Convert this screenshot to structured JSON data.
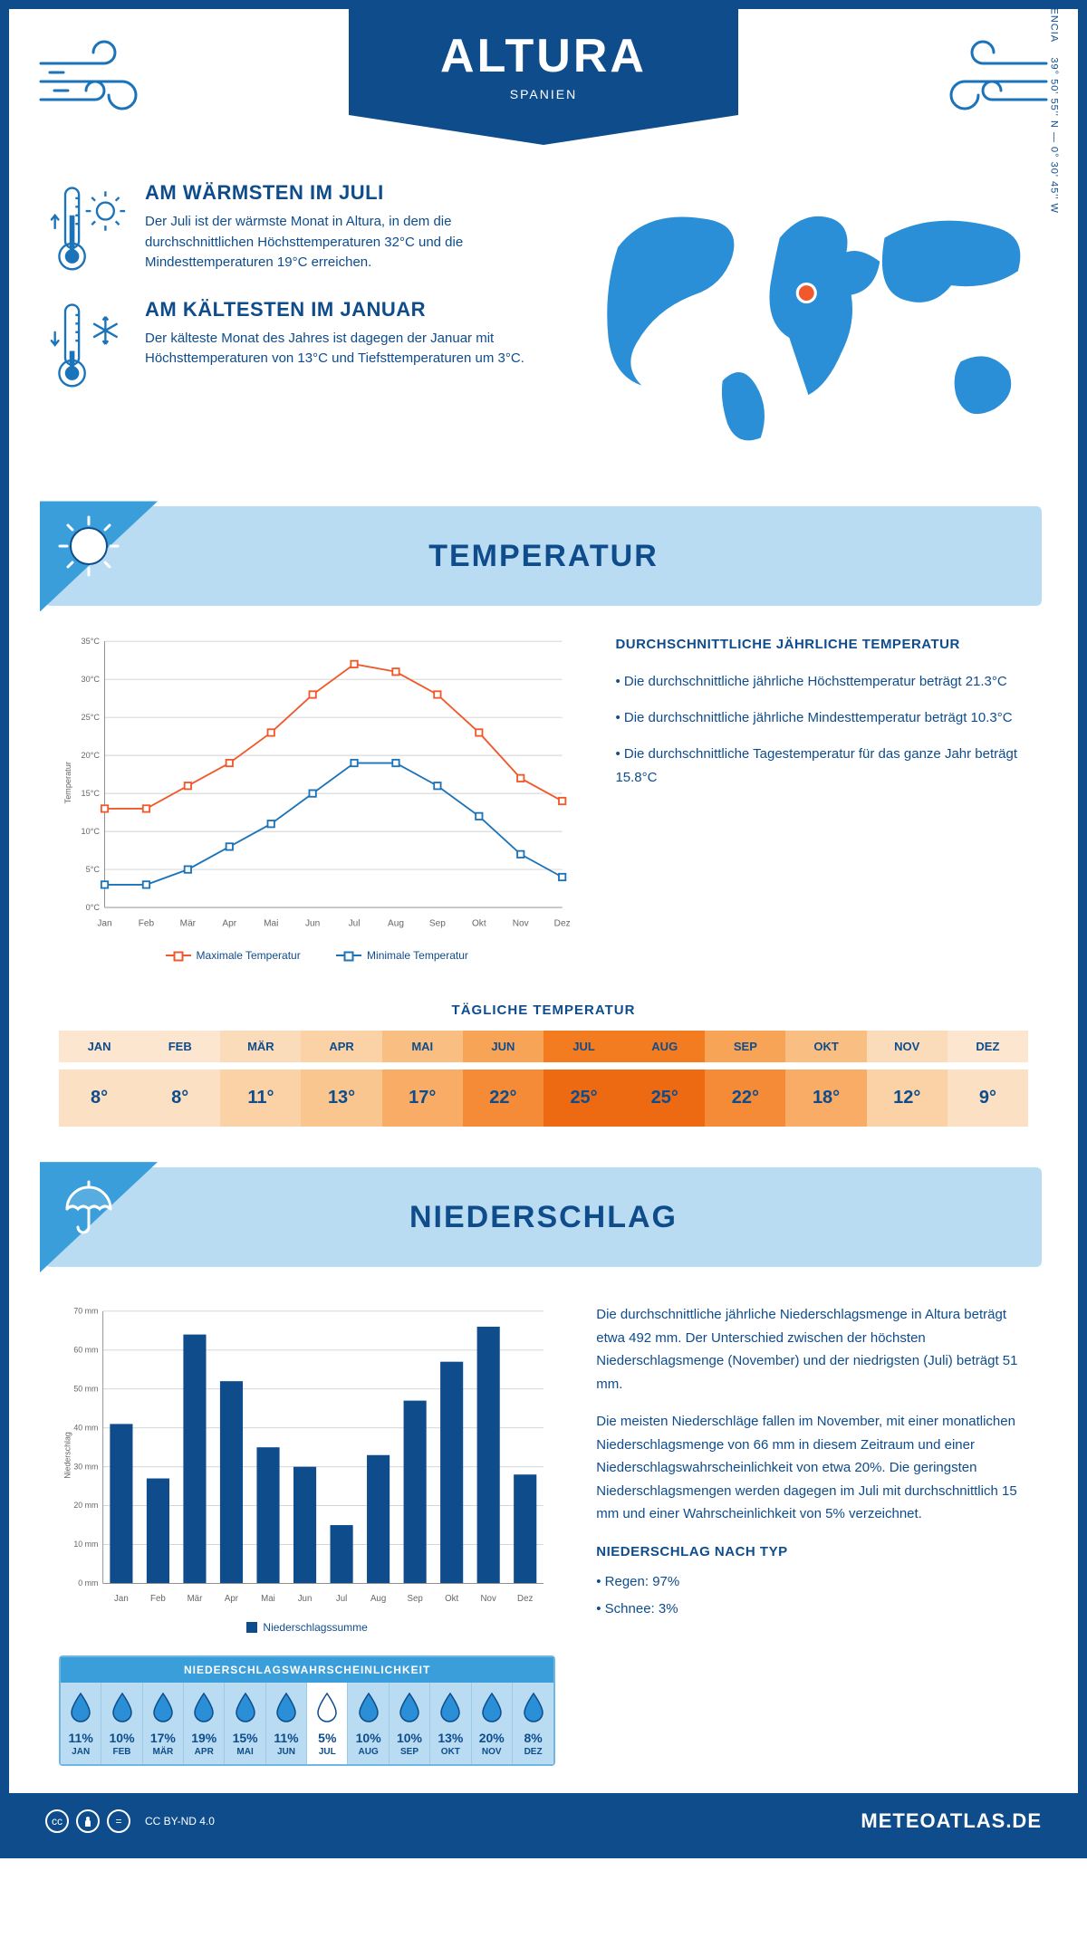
{
  "header": {
    "title": "ALTURA",
    "subtitle": "SPANIEN"
  },
  "intro": {
    "warm": {
      "heading": "AM WÄRMSTEN IM JULI",
      "text": "Der Juli ist der wärmste Monat in Altura, in dem die durchschnittlichen Höchsttemperaturen 32°C und die Mindesttemperaturen 19°C erreichen."
    },
    "cold": {
      "heading": "AM KÄLTESTEN IM JANUAR",
      "text": "Der kälteste Monat des Jahres ist dagegen der Januar mit Höchsttemperaturen von 13°C und Tiefsttemperaturen um 3°C."
    },
    "coords_line1": "VALENCIA",
    "coords_line2": "39° 50' 55'' N — 0° 30' 45'' W"
  },
  "temperature": {
    "section_title": "TEMPERATUR",
    "chart": {
      "type": "line",
      "months": [
        "Jan",
        "Feb",
        "Mär",
        "Apr",
        "Mai",
        "Jun",
        "Jul",
        "Aug",
        "Sep",
        "Okt",
        "Nov",
        "Dez"
      ],
      "max": [
        13,
        13,
        16,
        19,
        23,
        28,
        32,
        31,
        28,
        23,
        17,
        14
      ],
      "min": [
        3,
        3,
        5,
        8,
        11,
        15,
        19,
        19,
        16,
        12,
        7,
        4
      ],
      "y_label": "Temperatur",
      "y_min": 0,
      "y_max": 35,
      "y_step": 5,
      "y_unit": "°C",
      "max_color": "#f0592b",
      "min_color": "#1b73b9",
      "grid_color": "#d0d0d0",
      "axis_color": "#888888",
      "label_fontsize": 10,
      "legend_max": "Maximale Temperatur",
      "legend_min": "Minimale Temperatur"
    },
    "summary_title": "DURCHSCHNITTLICHE JÄHRLICHE TEMPERATUR",
    "summary_lines": [
      "• Die durchschnittliche jährliche Höchsttemperatur beträgt 21.3°C",
      "• Die durchschnittliche jährliche Mindesttemperatur beträgt 10.3°C",
      "• Die durchschnittliche Tagestemperatur für das ganze Jahr beträgt 15.8°C"
    ],
    "daily_title": "TÄGLICHE TEMPERATUR",
    "daily": {
      "months": [
        "JAN",
        "FEB",
        "MÄR",
        "APR",
        "MAI",
        "JUN",
        "JUL",
        "AUG",
        "SEP",
        "OKT",
        "NOV",
        "DEZ"
      ],
      "values": [
        "8°",
        "8°",
        "11°",
        "13°",
        "17°",
        "22°",
        "25°",
        "25°",
        "22°",
        "18°",
        "12°",
        "9°"
      ],
      "hdr_colors": [
        "#fce6cf",
        "#fce6cf",
        "#fbdcba",
        "#fbd2a6",
        "#f9be82",
        "#f7a456",
        "#f47c20",
        "#f47c20",
        "#f7a456",
        "#f9be82",
        "#fbdcba",
        "#fce6cf"
      ],
      "val_colors": [
        "#fce0c3",
        "#fce0c3",
        "#fbd2a6",
        "#fac68f",
        "#f8ac66",
        "#f58b36",
        "#ee6a12",
        "#ee6a12",
        "#f58b36",
        "#f8ac66",
        "#fbd2a6",
        "#fce0c3"
      ]
    }
  },
  "precip": {
    "section_title": "NIEDERSCHLAG",
    "chart": {
      "type": "bar",
      "months": [
        "Jan",
        "Feb",
        "Mär",
        "Apr",
        "Mai",
        "Jun",
        "Jul",
        "Aug",
        "Sep",
        "Okt",
        "Nov",
        "Dez"
      ],
      "values": [
        41,
        27,
        64,
        52,
        35,
        30,
        15,
        33,
        47,
        57,
        66,
        28
      ],
      "y_label": "Niederschlag",
      "y_min": 0,
      "y_max": 70,
      "y_step": 10,
      "y_unit": " mm",
      "bar_color": "#0e4c8c",
      "grid_color": "#d0d0d0",
      "axis_color": "#888888",
      "legend": "Niederschlagssumme"
    },
    "para1": "Die durchschnittliche jährliche Niederschlagsmenge in Altura beträgt etwa 492 mm. Der Unterschied zwischen der höchsten Niederschlagsmenge (November) und der niedrigsten (Juli) beträgt 51 mm.",
    "para2": "Die meisten Niederschläge fallen im November, mit einer monatlichen Niederschlagsmenge von 66 mm in diesem Zeitraum und einer Niederschlagswahrscheinlichkeit von etwa 20%. Die geringsten Niederschlagsmengen werden dagegen im Juli mit durchschnittlich 15 mm und einer Wahrscheinlichkeit von 5% verzeichnet.",
    "type_title": "NIEDERSCHLAG NACH TYP",
    "type_lines": [
      "• Regen: 97%",
      "• Schnee: 3%"
    ],
    "prob": {
      "title": "NIEDERSCHLAGSWAHRSCHEINLICHKEIT",
      "months": [
        "JAN",
        "FEB",
        "MÄR",
        "APR",
        "MAI",
        "JUN",
        "JUL",
        "AUG",
        "SEP",
        "OKT",
        "NOV",
        "DEZ"
      ],
      "values": [
        "11%",
        "10%",
        "17%",
        "19%",
        "15%",
        "11%",
        "5%",
        "10%",
        "10%",
        "13%",
        "20%",
        "8%"
      ],
      "low_index": 6,
      "drop_fill": "#2a8fd6",
      "drop_stroke": "#0e4c8c"
    }
  },
  "footer": {
    "license": "CC BY-ND 4.0",
    "brand": "METEOATLAS.DE"
  }
}
